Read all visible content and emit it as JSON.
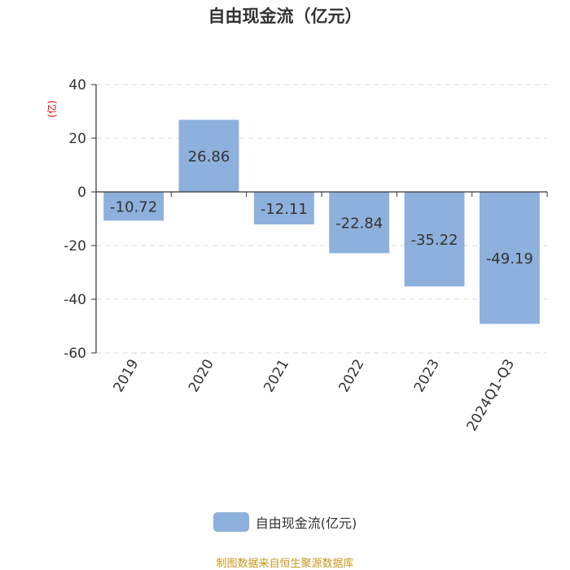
{
  "title": "自由现金流（亿元）",
  "source": "制图数据来自恒生聚源数据库",
  "legend": {
    "label": "自由现金流(亿元)",
    "color": "#8eb0dc"
  },
  "colors": {
    "bar": "#8eb0dc",
    "axis": "#333333",
    "grid": "#d8d8d8",
    "unit": "#e00000",
    "text": "#333333"
  },
  "chart_data": {
    "type": "bar",
    "title": "自由现金流（亿元）",
    "ylabel": "(亿)",
    "xlabel": "",
    "categories": [
      "2019",
      "2020",
      "2021",
      "2022",
      "2023",
      "2024Q1-Q3"
    ],
    "series": [
      {
        "name": "自由现金流(亿元)",
        "values": [
          -10.72,
          26.86,
          -12.11,
          -22.84,
          -35.22,
          -49.19
        ]
      }
    ],
    "value_labels": [
      "-10.72",
      "26.86",
      "-12.11",
      "-22.84",
      "-35.22",
      "-49.19"
    ],
    "ylim": [
      -60,
      40
    ],
    "yticks": [
      40,
      20,
      0,
      -20,
      -40,
      -60
    ],
    "ytick_labels": [
      "40",
      "20",
      "0",
      "-20",
      "-40",
      "-60"
    ],
    "grid": true,
    "legend_position": "bottom"
  }
}
